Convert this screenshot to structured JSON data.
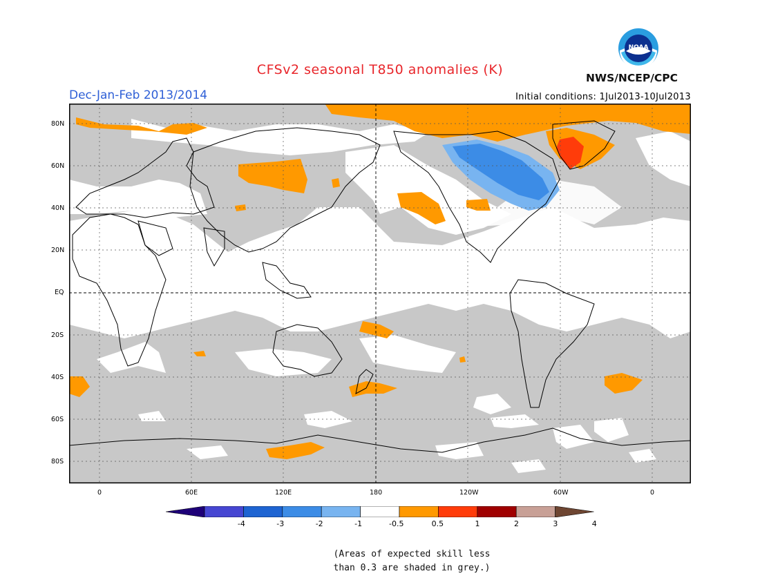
{
  "header": {
    "title": "CFSv2 seasonal T850 anomalies (K)",
    "season": "Dec-Jan-Feb 2013/2014",
    "initial_conditions": "Initial conditions: 1Jul2013-10Jul2013",
    "agency": "NWS/NCEP/CPC",
    "logo_text": "NOAA"
  },
  "map": {
    "projection": "latitude-longitude",
    "lat_labels": [
      "80N",
      "60N",
      "40N",
      "20N",
      "EQ",
      "20S",
      "40S",
      "60S",
      "80S"
    ],
    "lon_labels": [
      "0",
      "60E",
      "120E",
      "180",
      "120W",
      "60W",
      "0"
    ],
    "colors": {
      "grey_low_skill": "#c8c8c8",
      "neutral": "#ffffff",
      "warm_0_5_to_1": "#ff9900",
      "warm_1_to_2": "#ff3c0a",
      "cool_minus1_to_minus0_5": "#78b4f0",
      "cool_minus2_to_minus1": "#3c8ce6",
      "coastline": "#000000"
    }
  },
  "colorbar": {
    "labels": [
      "-4",
      "-3",
      "-2",
      "-1",
      "-0.5",
      "0.5",
      "1",
      "2",
      "3",
      "4"
    ],
    "colors": [
      "#1e0078",
      "#4646d2",
      "#1e64d2",
      "#3c8ce6",
      "#78b4f0",
      "#ffffff",
      "#ff9900",
      "#ff3c0a",
      "#a00000",
      "#c8a096",
      "#6e4632"
    ]
  },
  "footnote": {
    "line1": "(Areas of expected skill less",
    "line2": "than 0.3 are shaded in grey.)"
  }
}
